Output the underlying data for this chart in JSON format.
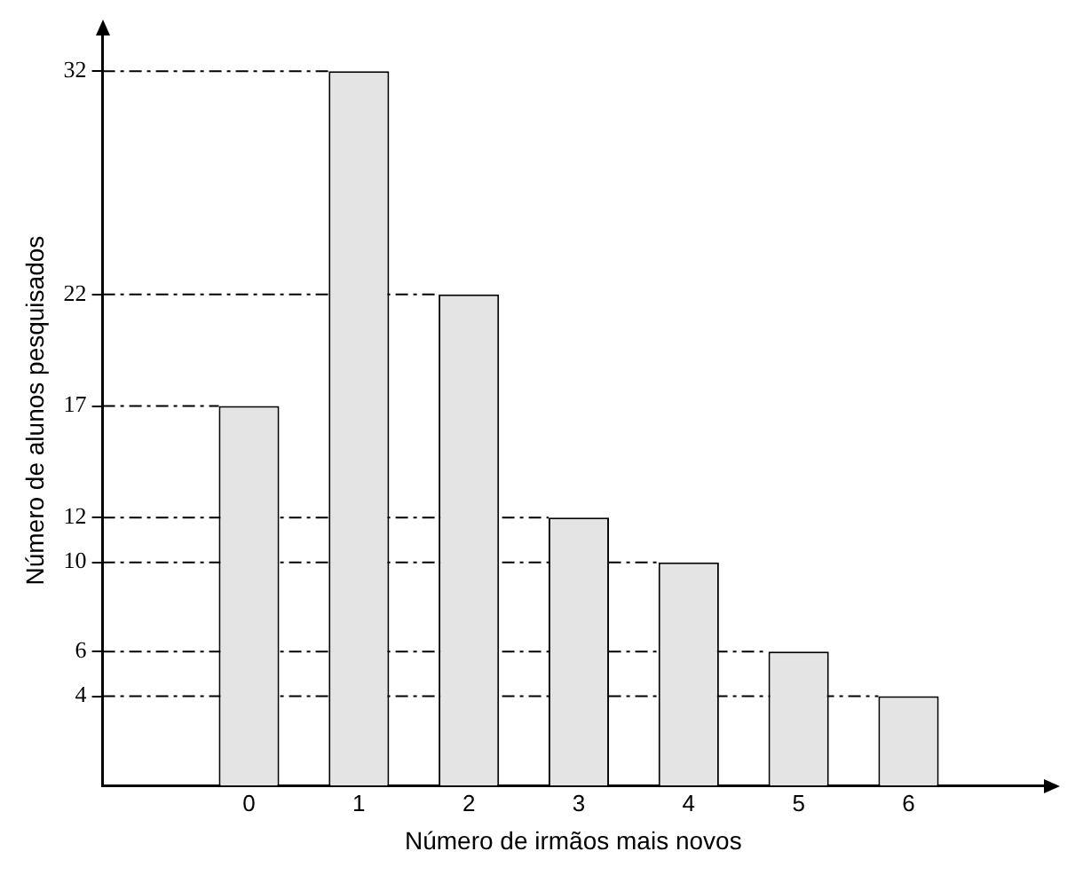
{
  "chart_data": {
    "type": "bar",
    "xlabel": "Número de irmãos mais novos",
    "ylabel": "Número de alunos pesquisados",
    "categories": [
      "0",
      "1",
      "2",
      "3",
      "4",
      "5",
      "6"
    ],
    "values": [
      17,
      32,
      22,
      12,
      10,
      6,
      4
    ],
    "color": "#e4e4e4",
    "ylim": [
      0,
      33.6
    ],
    "yticks": [
      4,
      6,
      10,
      12,
      17,
      22,
      32
    ],
    "grid": false,
    "legend": false,
    "ref_lines": [
      {
        "axis": "y",
        "value": 32,
        "line_style": "dashed",
        "color": "#000000"
      },
      {
        "axis": "y",
        "value": 22,
        "line_style": "dashed",
        "color": "#000000"
      },
      {
        "axis": "y",
        "value": 17,
        "line_style": "dashed",
        "color": "#000000"
      },
      {
        "axis": "y",
        "value": 12,
        "line_style": "dashed",
        "color": "#000000"
      },
      {
        "axis": "y",
        "value": 10,
        "line_style": "dashed",
        "color": "#000000"
      },
      {
        "axis": "y",
        "value": 6,
        "line_style": "dashed",
        "color": "#000000"
      },
      {
        "axis": "y",
        "value": 4,
        "line_style": "dashed",
        "color": "#000000"
      }
    ]
  }
}
